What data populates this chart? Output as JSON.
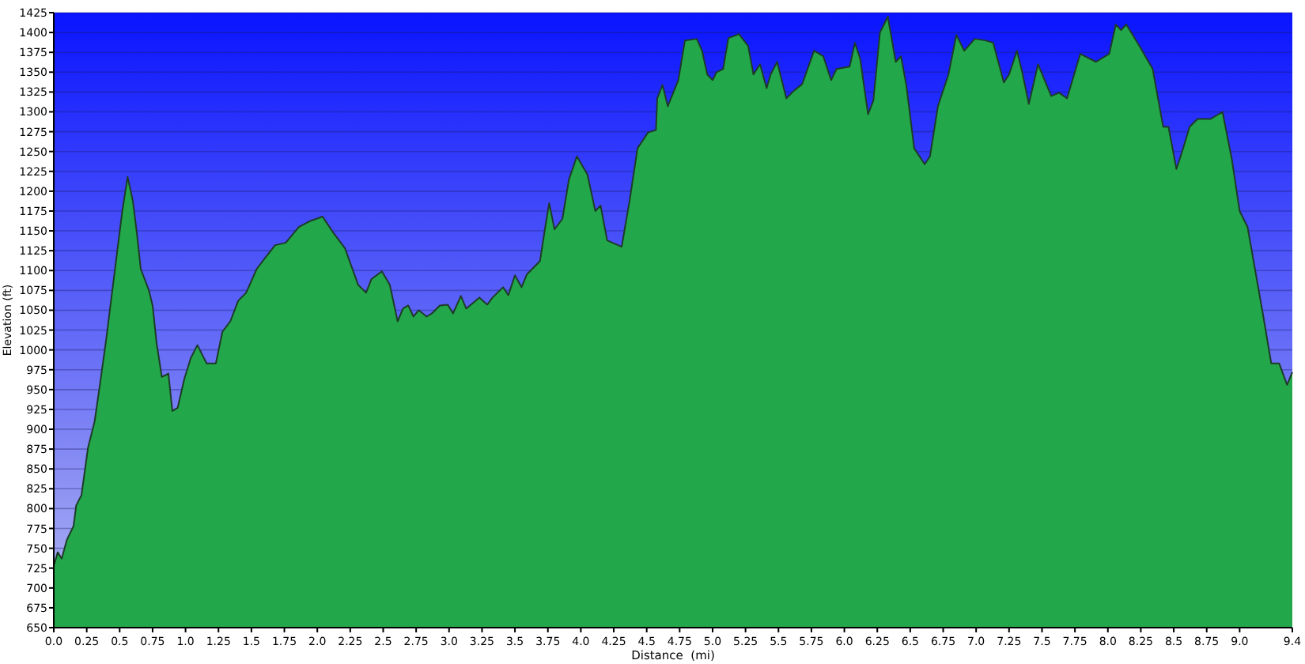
{
  "chart_data": {
    "type": "area",
    "xlabel": "Distance  (mi)",
    "ylabel": "Elevation (ft)",
    "x": [
      0,
      0.03,
      0.06,
      0.1,
      0.15,
      0.17,
      0.21,
      0.26,
      0.31,
      0.35,
      0.4,
      0.43,
      0.47,
      0.52,
      0.56,
      0.6,
      0.63,
      0.66,
      0.72,
      0.75,
      0.78,
      0.82,
      0.87,
      0.9,
      0.94,
      0.99,
      1.04,
      1.09,
      1.16,
      1.23,
      1.28,
      1.34,
      1.4,
      1.46,
      1.54,
      1.6,
      1.68,
      1.76,
      1.86,
      1.94,
      2.04,
      2.12,
      2.21,
      2.31,
      2.37,
      2.41,
      2.49,
      2.55,
      2.61,
      2.65,
      2.69,
      2.73,
      2.77,
      2.83,
      2.87,
      2.93,
      2.99,
      3.03,
      3.09,
      3.13,
      3.23,
      3.29,
      3.33,
      3.41,
      3.45,
      3.5,
      3.55,
      3.59,
      3.69,
      3.73,
      3.76,
      3.8,
      3.86,
      3.91,
      3.97,
      4.05,
      4.11,
      4.15,
      4.2,
      4.31,
      4.37,
      4.43,
      4.51,
      4.57,
      4.58,
      4.62,
      4.66,
      4.74,
      4.79,
      4.88,
      4.92,
      4.96,
      5,
      5.03,
      5.08,
      5.12,
      5.2,
      5.27,
      5.31,
      5.36,
      5.41,
      5.44,
      5.49,
      5.56,
      5.62,
      5.68,
      5.77,
      5.84,
      5.9,
      5.94,
      6.04,
      6.08,
      6.12,
      6.18,
      6.22,
      6.27,
      6.33,
      6.39,
      6.43,
      6.47,
      6.53,
      6.61,
      6.65,
      6.71,
      6.79,
      6.85,
      6.91,
      6.99,
      7.07,
      7.13,
      7.21,
      7.25,
      7.31,
      7.35,
      7.4,
      7.47,
      7.57,
      7.63,
      7.69,
      7.79,
      7.91,
      8.01,
      8.06,
      8.1,
      8.14,
      8.24,
      8.34,
      8.42,
      8.46,
      8.52,
      8.56,
      8.62,
      8.68,
      8.78,
      8.87,
      8.94,
      9,
      9.06,
      9.18,
      9.24,
      9.3,
      9.36,
      9.4
    ],
    "series": [
      {
        "color": "#22a84a",
        "values": [
          728,
          745,
          737,
          761,
          778,
          804,
          817,
          877,
          910,
          956,
          1016,
          1056,
          1109,
          1175,
          1218,
          1188,
          1148,
          1102,
          1076,
          1056,
          1009,
          966,
          970,
          923,
          927,
          963,
          990,
          1006,
          983,
          983,
          1023,
          1036,
          1062,
          1072,
          1102,
          1115,
          1132,
          1135,
          1155,
          1162,
          1168,
          1148,
          1128,
          1082,
          1072,
          1089,
          1099,
          1082,
          1036,
          1052,
          1056,
          1042,
          1050,
          1042,
          1046,
          1056,
          1057,
          1046,
          1068,
          1052,
          1066,
          1057,
          1066,
          1079,
          1069,
          1094,
          1079,
          1095,
          1112,
          1155,
          1185,
          1152,
          1165,
          1215,
          1244,
          1221,
          1175,
          1182,
          1138,
          1130,
          1188,
          1254,
          1274,
          1277,
          1317,
          1334,
          1307,
          1340,
          1390,
          1392,
          1377,
          1347,
          1340,
          1350,
          1354,
          1393,
          1398,
          1383,
          1347,
          1360,
          1330,
          1347,
          1363,
          1317,
          1327,
          1335,
          1377,
          1370,
          1340,
          1354,
          1357,
          1387,
          1367,
          1297,
          1314,
          1400,
          1420,
          1363,
          1370,
          1334,
          1254,
          1234,
          1244,
          1307,
          1347,
          1397,
          1377,
          1392,
          1390,
          1387,
          1337,
          1347,
          1377,
          1350,
          1310,
          1360,
          1320,
          1324,
          1317,
          1373,
          1363,
          1373,
          1410,
          1403,
          1410,
          1383,
          1354,
          1281,
          1281,
          1228,
          1248,
          1281,
          1291,
          1291,
          1300,
          1241,
          1175,
          1155,
          1042,
          983,
          983,
          956,
          972
        ]
      }
    ],
    "xlim": [
      0,
      9.4
    ],
    "xticks": [
      {
        "value": 0,
        "label": "0.0"
      },
      0.25,
      0.5,
      0.75,
      {
        "value": 1,
        "label": "1.0"
      },
      1.25,
      1.5,
      1.75,
      {
        "value": 2,
        "label": "2.0"
      },
      2.25,
      2.5,
      2.75,
      {
        "value": 3,
        "label": "3.0"
      },
      3.25,
      3.5,
      3.75,
      {
        "value": 4,
        "label": "4.0"
      },
      4.25,
      4.5,
      4.75,
      {
        "value": 5,
        "label": "5.0"
      },
      5.25,
      5.5,
      5.75,
      {
        "value": 6,
        "label": "6.0"
      },
      6.25,
      6.5,
      6.75,
      {
        "value": 7,
        "label": "7.0"
      },
      7.25,
      7.5,
      7.75,
      {
        "value": 8,
        "label": "8.0"
      },
      8.25,
      8.5,
      8.75,
      {
        "value": 9,
        "label": "9.0"
      },
      9.4
    ],
    "ylim": [
      650,
      1425
    ],
    "yticks": [
      650,
      675,
      700,
      725,
      750,
      775,
      800,
      825,
      850,
      875,
      900,
      925,
      950,
      975,
      1000,
      1025,
      1050,
      1075,
      1100,
      1125,
      1150,
      1175,
      1200,
      1225,
      1250,
      1275,
      1300,
      1325,
      1350,
      1375,
      1400,
      1425
    ],
    "grid": "y"
  }
}
